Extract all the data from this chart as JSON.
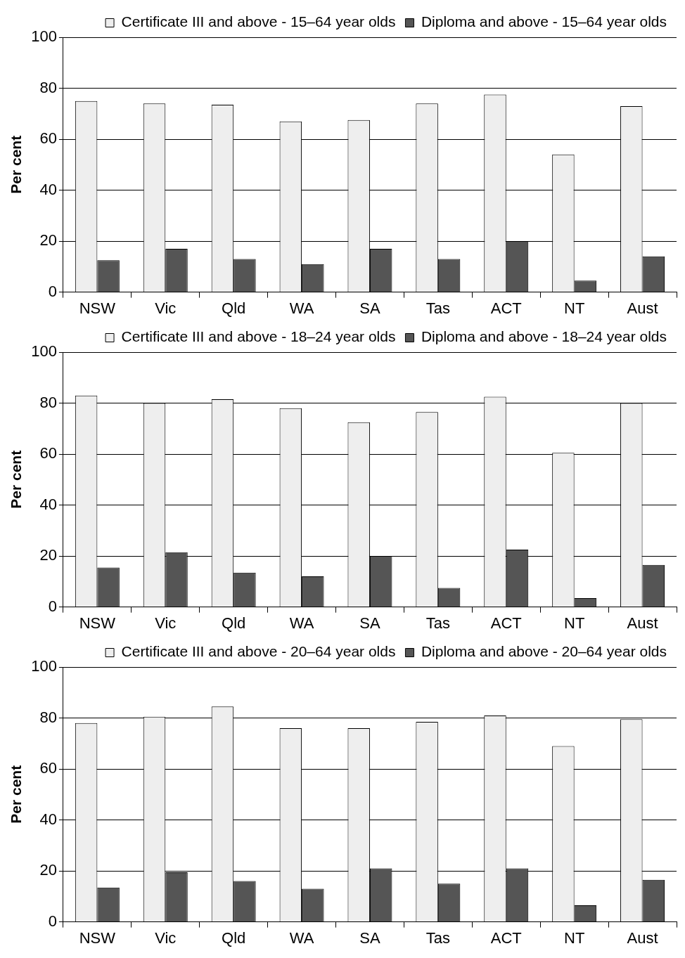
{
  "chart_data": [
    {
      "type": "bar",
      "ylabel": "Per cent",
      "categories": [
        "NSW",
        "Vic",
        "Qld",
        "WA",
        "SA",
        "Tas",
        "ACT",
        "NT",
        "Aust"
      ],
      "series": [
        {
          "name": "Certificate III and above - 15–64 year olds",
          "color": "#eeeeee",
          "values": [
            75,
            74,
            73.5,
            67,
            67.5,
            74,
            77.5,
            54,
            73
          ]
        },
        {
          "name": "Diploma and above - 15–64 year olds",
          "color": "#555555",
          "values": [
            12.5,
            17,
            13,
            11,
            17,
            13,
            20,
            4.5,
            14
          ]
        }
      ],
      "ylim": [
        0,
        100
      ],
      "yticks": [
        0,
        20,
        40,
        60,
        80,
        100
      ],
      "grid": "y",
      "legend": "top"
    },
    {
      "type": "bar",
      "ylabel": "Per cent",
      "categories": [
        "NSW",
        "Vic",
        "Qld",
        "WA",
        "SA",
        "Tas",
        "ACT",
        "NT",
        "Aust"
      ],
      "series": [
        {
          "name": "Certificate III and above - 18–24 year olds",
          "color": "#eeeeee",
          "values": [
            83,
            80,
            81.5,
            78,
            72.5,
            76.5,
            82.5,
            60.5,
            80
          ]
        },
        {
          "name": "Diploma and above - 18–24 year olds",
          "color": "#555555",
          "values": [
            15.5,
            21.5,
            13.5,
            12,
            20,
            7.5,
            22.5,
            3.5,
            16.5
          ]
        }
      ],
      "ylim": [
        0,
        100
      ],
      "yticks": [
        0,
        20,
        40,
        60,
        80,
        100
      ],
      "grid": "y",
      "legend": "top"
    },
    {
      "type": "bar",
      "ylabel": "Per cent",
      "categories": [
        "NSW",
        "Vic",
        "Qld",
        "WA",
        "SA",
        "Tas",
        "ACT",
        "NT",
        "Aust"
      ],
      "series": [
        {
          "name": "Certificate III and above - 20–64 year olds",
          "color": "#eeeeee",
          "values": [
            78,
            80.5,
            84.5,
            76,
            76,
            78.5,
            81,
            69,
            79.5
          ]
        },
        {
          "name": "Diploma and above - 20–64 year olds",
          "color": "#555555",
          "values": [
            13.5,
            19.5,
            16,
            13,
            21,
            15,
            21,
            6.5,
            16.5
          ]
        }
      ],
      "ylim": [
        0,
        100
      ],
      "yticks": [
        0,
        20,
        40,
        60,
        80,
        100
      ],
      "grid": "y",
      "legend": "top"
    }
  ]
}
